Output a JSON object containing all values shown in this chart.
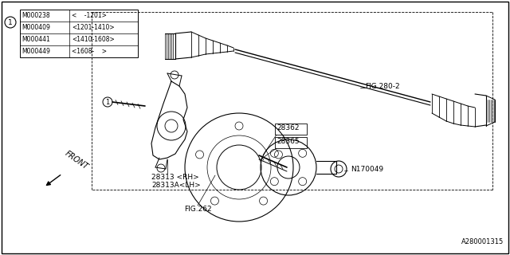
{
  "bg_color": "#ffffff",
  "fig_width": 6.4,
  "fig_height": 3.2,
  "dpi": 100,
  "table_rows": [
    [
      "M000238",
      "<    -1201>"
    ],
    [
      "M000409",
      "<1201-1410>"
    ],
    [
      "M000441",
      "<1410-1608>"
    ],
    [
      "M000449",
      "<1608-    >"
    ]
  ],
  "labels": {
    "fig280": "FIG.280-2",
    "fig262": "FIG.262",
    "28362": "28362",
    "28365": "28365",
    "28313rh": "28313 <RH>",
    "28313lh": "28313A<LH>",
    "N170049": "N170049",
    "front": "FRONT"
  },
  "ref_code": "A280001315"
}
